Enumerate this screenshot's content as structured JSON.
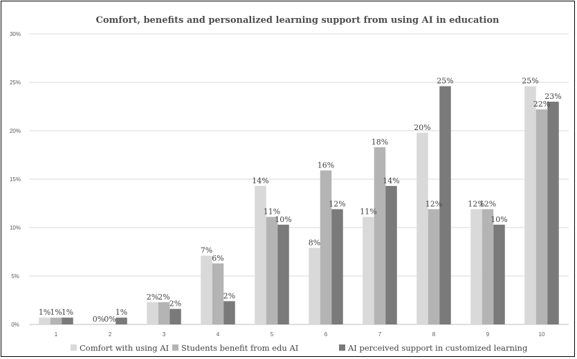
{
  "chart_data": {
    "type": "bar",
    "title": "Comfort, benefits and personalized learning support from using AI in education",
    "xlabel": "",
    "ylabel": "",
    "ylim": [
      0,
      30
    ],
    "yticks": [
      "0%",
      "5%",
      "10%",
      "15%",
      "20%",
      "25%",
      "30%"
    ],
    "ytick_values": [
      0,
      5,
      10,
      15,
      20,
      25,
      30
    ],
    "grid": true,
    "legend_position": "bottom",
    "categories": [
      "1",
      "2",
      "3",
      "4",
      "5",
      "6",
      "7",
      "8",
      "9",
      "10"
    ],
    "series": [
      {
        "name": "Comfort with using AI",
        "color": "#d9d9d9",
        "values": [
          0.7,
          0,
          2.3,
          7.1,
          14.3,
          7.9,
          11.1,
          19.8,
          11.9,
          24.6
        ],
        "labels": [
          "1%",
          "0%",
          "2%",
          "7%",
          "14%",
          "8%",
          "11%",
          "20%",
          "12%",
          "25%"
        ]
      },
      {
        "name": "Students benefit from edu AI",
        "color": "#b4b4b4",
        "values": [
          0.7,
          0,
          2.3,
          6.3,
          11.1,
          15.9,
          18.3,
          11.9,
          11.9,
          22.2
        ],
        "labels": [
          "1%",
          "0%",
          "2%",
          "6%",
          "11%",
          "16%",
          "18%",
          "12%",
          "12%",
          "22%"
        ]
      },
      {
        "name": "AI perceived support in customized learning",
        "color": "#7a7a7a",
        "values": [
          0.7,
          0.7,
          1.6,
          2.4,
          10.3,
          11.9,
          14.3,
          24.6,
          10.3,
          23.0
        ],
        "labels": [
          "1%",
          "1%",
          "2%",
          "2%",
          "10%",
          "12%",
          "14%",
          "25%",
          "10%",
          "23%"
        ]
      }
    ]
  }
}
